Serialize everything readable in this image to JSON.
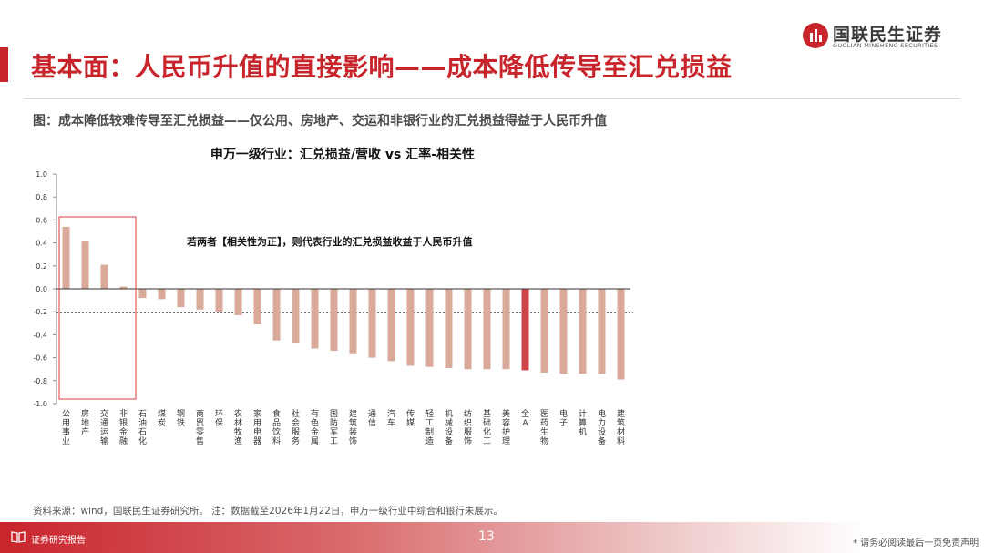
{
  "page": {
    "title": "基本面：人民币升值的直接影响——成本降低传导至汇兑损益",
    "figure_caption": "图：成本降低较难传导至汇兑损益——仅公用、房地产、交运和非银行业的汇兑损益得益于人民币升值",
    "source_note": "资料来源：wind，国联民生证券研究所。 注：数据截至2026年1月22日，申万一级行业中综合和银行未展示。",
    "page_number": "13",
    "footer_label": "证券研究报告",
    "disclaimer": "* 请务必阅读最后一页免责声明"
  },
  "logo": {
    "name_cn": "国联民生证券",
    "name_en": "GUOLIAN MINSHENG SECURITIES"
  },
  "colors": {
    "brand_red": "#c8242b",
    "bar": "#d9aa9a",
    "bar_highlight": "#cd4448",
    "highlight_box": "#e03a3a"
  },
  "chart_data": {
    "type": "bar",
    "title": "申万一级行业：汇兑损益/营收 vs 汇率-相关性",
    "annotation": "若两者【相关性为正】，则代表行业的汇兑损益收益于人民币升值",
    "categories": [
      "公用事业",
      "房地产",
      "交通运输",
      "非银金融",
      "石油石化",
      "煤炭",
      "钢铁",
      "商贸零售",
      "环保",
      "农林牧渔",
      "家用电器",
      "食品饮料",
      "社会服务",
      "有色金属",
      "国防军工",
      "建筑装饰",
      "通信",
      "汽车",
      "传媒",
      "轻工制造",
      "机械设备",
      "纺织服饰",
      "基础化工",
      "美容护理",
      "全A",
      "医药生物",
      "电子",
      "计算机",
      "电力设备",
      "建筑材料"
    ],
    "values": [
      0.54,
      0.42,
      0.21,
      0.02,
      -0.08,
      -0.09,
      -0.16,
      -0.18,
      -0.2,
      -0.23,
      -0.31,
      -0.45,
      -0.47,
      -0.52,
      -0.54,
      -0.57,
      -0.6,
      -0.63,
      -0.67,
      -0.68,
      -0.69,
      -0.7,
      -0.7,
      -0.7,
      -0.71,
      -0.73,
      -0.74,
      -0.74,
      -0.74,
      -0.79
    ],
    "highlight_category": "全A",
    "reference_line": -0.21,
    "ylim": [
      -1.0,
      1.0
    ],
    "yticks": [
      "1.0",
      "0.8",
      "0.6",
      "0.4",
      "0.2",
      "0.0",
      "-0.2",
      "-0.4",
      "-0.6",
      "-0.8",
      "-1.0"
    ],
    "boxed_categories": [
      "公用事业",
      "房地产",
      "交通运输",
      "非银金融"
    ]
  }
}
